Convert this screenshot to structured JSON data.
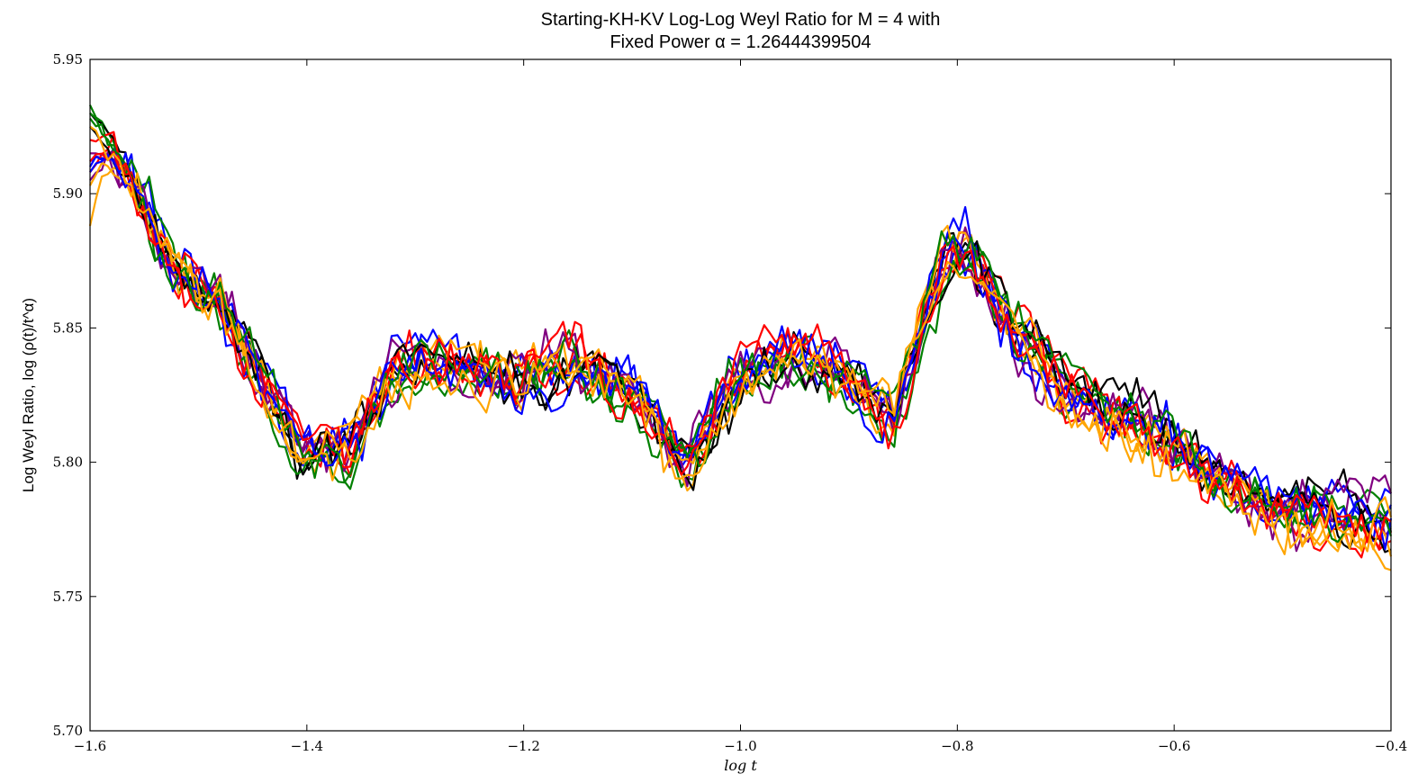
{
  "chart_data": {
    "type": "line",
    "title_line1": "Starting-KH-KV Log-Log Weyl Ratio for M = 4 with",
    "title_line2": "Fixed Power α = 1.26444399504",
    "xlabel": "log t",
    "ylabel": "Log Weyl Ratio, log (ρ(t)/t^α)",
    "xlim": [
      -1.6,
      -0.4
    ],
    "ylim": [
      5.7,
      5.95
    ],
    "xticks": [
      -1.6,
      -1.4,
      -1.2,
      -1.0,
      -0.8,
      -0.6,
      -0.4
    ],
    "xtick_labels": [
      "−1.6",
      "−1.4",
      "−1.2",
      "−1.0",
      "−0.8",
      "−0.6",
      "−0.4"
    ],
    "yticks": [
      5.7,
      5.75,
      5.8,
      5.85,
      5.9,
      5.95
    ],
    "ytick_labels": [
      "5.70",
      "5.75",
      "5.80",
      "5.85",
      "5.90",
      "5.95"
    ],
    "grid": false,
    "legend": "none",
    "series_colors": [
      "#0000ff",
      "#008000",
      "#ff0000",
      "#800080",
      "#000000",
      "#ffa500"
    ],
    "baseline": {
      "x": [
        -1.6,
        -1.52,
        -1.48,
        -1.41,
        -1.36,
        -1.32,
        -1.28,
        -1.22,
        -1.16,
        -1.1,
        -1.05,
        -1.0,
        -0.95,
        -0.9,
        -0.86,
        -0.81,
        -0.79,
        -0.75,
        -0.7,
        -0.65,
        -0.6,
        -0.55,
        -0.5,
        -0.45,
        -0.4
      ],
      "y": [
        5.933,
        5.87,
        5.86,
        5.805,
        5.803,
        5.835,
        5.837,
        5.83,
        5.835,
        5.828,
        5.8,
        5.832,
        5.84,
        5.832,
        5.815,
        5.878,
        5.88,
        5.85,
        5.825,
        5.818,
        5.806,
        5.79,
        5.782,
        5.78,
        5.778
      ]
    },
    "series": [
      {
        "color": "#0000ff",
        "start": 5.91,
        "seed": 11
      },
      {
        "color": "#008000",
        "start": 5.933,
        "seed": 23
      },
      {
        "color": "#ff0000",
        "start": 5.908,
        "seed": 37
      },
      {
        "color": "#800080",
        "start": 5.905,
        "seed": 41
      },
      {
        "color": "#000000",
        "start": 5.93,
        "seed": 53
      },
      {
        "color": "#ffa500",
        "start": 5.888,
        "seed": 67
      },
      {
        "color": "#0000ff",
        "start": 5.912,
        "seed": 71
      },
      {
        "color": "#008000",
        "start": 5.928,
        "seed": 83
      },
      {
        "color": "#ff0000",
        "start": 5.92,
        "seed": 97
      },
      {
        "color": "#800080",
        "start": 5.915,
        "seed": 101
      },
      {
        "color": "#000000",
        "start": 5.925,
        "seed": 113
      },
      {
        "color": "#ffa500",
        "start": 5.903,
        "seed": 127
      },
      {
        "color": "#0000ff",
        "start": 5.908,
        "seed": 131
      },
      {
        "color": "#008000",
        "start": 5.93,
        "seed": 139
      },
      {
        "color": "#ff0000",
        "start": 5.912,
        "seed": 149
      },
      {
        "color": "#ffa500",
        "start": 5.925,
        "seed": 157
      }
    ]
  }
}
